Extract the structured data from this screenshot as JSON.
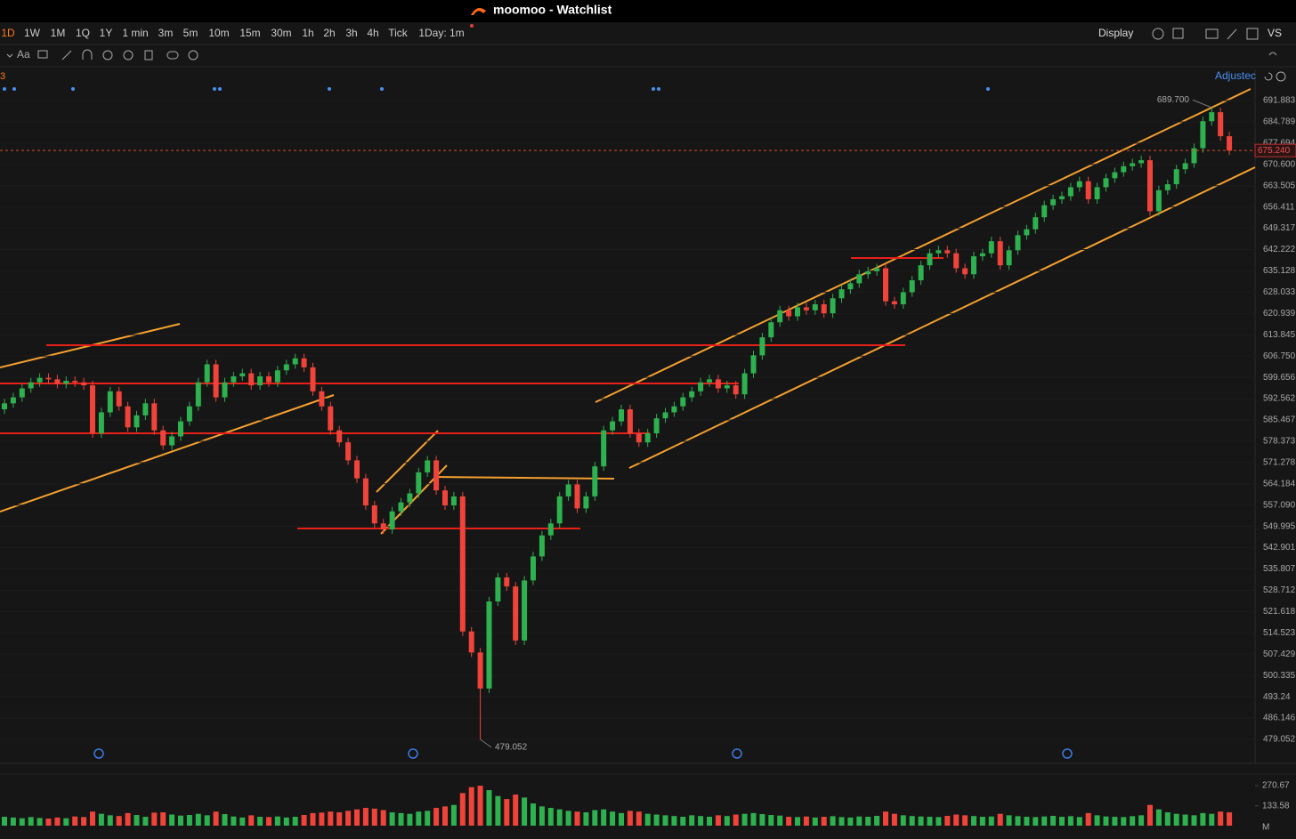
{
  "window": {
    "title": "moomoo - Watchlist"
  },
  "toolbar": {
    "intervals": [
      "1D",
      "1W",
      "1M",
      "1Q",
      "1Y",
      "1 min",
      "3m",
      "5m",
      "10m",
      "15m",
      "30m",
      "1h",
      "2h",
      "3h",
      "4h",
      "Tick",
      "1Day: 1m"
    ],
    "display": "Display",
    "compare": "VS",
    "text_tool": "Aa"
  },
  "chart_data": {
    "type": "candlestick",
    "indicator_label": "3",
    "adjust_label": "Adjustec",
    "colors": {
      "up": "#2eb14f",
      "down": "#f0443a"
    },
    "open": [
      589,
      591,
      593,
      596,
      598,
      599.5,
      599,
      597.5,
      598.5,
      598,
      597,
      581,
      588,
      595,
      590,
      583,
      587,
      591,
      582,
      577,
      580,
      585,
      590,
      598,
      604,
      593,
      598,
      600,
      601,
      597,
      600,
      598,
      602,
      604,
      606,
      603,
      595,
      590,
      582,
      578,
      572,
      566,
      557,
      551,
      549,
      555,
      558,
      561,
      568,
      572,
      562,
      557,
      560,
      515,
      508,
      496,
      525,
      533,
      530,
      512,
      532,
      540,
      547,
      551,
      560,
      564,
      556,
      560,
      570,
      582,
      585,
      589,
      581,
      578,
      581,
      586,
      588,
      590,
      593,
      595,
      598,
      599,
      596,
      597,
      594,
      601,
      607,
      613,
      618,
      622,
      620,
      623,
      622,
      624,
      621,
      626,
      629,
      631,
      634,
      635,
      636,
      625,
      624,
      628,
      632,
      637,
      641,
      642,
      641,
      636,
      634,
      640,
      641,
      645,
      637,
      642,
      647,
      649,
      653,
      657,
      659,
      660,
      663,
      665,
      659,
      663,
      666,
      668,
      670,
      671,
      672,
      655,
      662,
      664,
      669,
      671,
      676,
      685,
      688,
      680
    ],
    "high": [
      592.5,
      594.5,
      597.5,
      599.5,
      601,
      601,
      600.5,
      600,
      600,
      599.5,
      598.5,
      589.5,
      596.5,
      596.5,
      591.5,
      588.5,
      592.5,
      592.5,
      583.5,
      581.5,
      586.5,
      591.5,
      599.5,
      605.5,
      605.5,
      599.5,
      601.5,
      602.5,
      602.5,
      601.5,
      601.5,
      603.5,
      605.5,
      607.5,
      607.5,
      604.5,
      596.5,
      591.5,
      583.5,
      579.5,
      573.5,
      567.5,
      558.5,
      552.5,
      556.5,
      559.5,
      562.5,
      569.5,
      573.5,
      573.5,
      563.5,
      561.5,
      561.5,
      516.5,
      509.5,
      526.5,
      534.5,
      534.5,
      531.5,
      533.5,
      541.5,
      548.5,
      552.5,
      561.5,
      565.5,
      565.5,
      561.5,
      571.5,
      583.5,
      586.5,
      590.5,
      590.5,
      582.5,
      582.5,
      587.5,
      589.5,
      591.5,
      594.5,
      596.5,
      599.5,
      600.5,
      600.5,
      598.5,
      598.5,
      602.5,
      608.5,
      614.5,
      619.5,
      623.5,
      623.5,
      624.5,
      624.5,
      625.5,
      625.5,
      627.5,
      630.5,
      632.5,
      635.5,
      636.5,
      637.5,
      637.5,
      626.5,
      629.5,
      633.5,
      638.5,
      642.5,
      643.5,
      643.5,
      642.5,
      637.5,
      641.5,
      642.5,
      646.5,
      646.5,
      643.5,
      648.5,
      650.5,
      654.5,
      658.5,
      660.5,
      661.5,
      664.5,
      666.5,
      666.5,
      664.5,
      667.5,
      669.5,
      671.5,
      672.5,
      673.5,
      673.5,
      663.5,
      665.5,
      670.5,
      672.5,
      677.5,
      686.5,
      689.7,
      689.5,
      681.5
    ],
    "low": [
      587.5,
      589.5,
      591.5,
      594.5,
      596.5,
      597.5,
      596,
      596,
      596.5,
      595.5,
      579.5,
      579.5,
      586.5,
      588.5,
      581.5,
      581.5,
      585.5,
      580.5,
      575.5,
      575.5,
      578.5,
      583.5,
      588.5,
      596.5,
      591.5,
      591.5,
      596.5,
      598.5,
      595.5,
      595.5,
      596.5,
      596.5,
      600.5,
      602.5,
      601.5,
      593.5,
      588.5,
      580.5,
      576.5,
      570.5,
      564.5,
      555.5,
      549.5,
      547.5,
      547.5,
      553.5,
      556.5,
      559.5,
      566.5,
      560.5,
      555.5,
      555.5,
      513.5,
      506.5,
      479.052,
      494.5,
      523.5,
      528.5,
      510.5,
      510.5,
      530.5,
      538.5,
      545.5,
      549.5,
      558.5,
      554.5,
      554.5,
      558.5,
      568.5,
      580.5,
      583.5,
      579.5,
      576.5,
      576.5,
      579.5,
      584.5,
      586.5,
      588.5,
      591.5,
      593.5,
      596.5,
      594.5,
      594.5,
      592.5,
      592.5,
      599.5,
      605.5,
      611.5,
      616.5,
      618.5,
      618.5,
      620.5,
      620.5,
      619.5,
      619.5,
      624.5,
      627.5,
      629.5,
      632.5,
      633.5,
      623.5,
      622.5,
      622.5,
      626.5,
      630.5,
      635.5,
      639.5,
      639.5,
      634.5,
      632.5,
      632.5,
      638.5,
      639.5,
      635.5,
      635.5,
      640.5,
      645.5,
      647.5,
      651.5,
      655.5,
      657.5,
      658.5,
      661.5,
      657.5,
      657.5,
      661.5,
      664.5,
      666.5,
      668.5,
      669.5,
      653.5,
      653.5,
      660.5,
      662.5,
      667.5,
      669.5,
      674.5,
      683.5,
      678.5,
      673.74
    ],
    "close": [
      591,
      593,
      596,
      598,
      599.5,
      599,
      597.5,
      598.5,
      598,
      597,
      581,
      588,
      595,
      590,
      583,
      587,
      591,
      582,
      577,
      580,
      585,
      590,
      598,
      604,
      593,
      598,
      600,
      601,
      597,
      600,
      598,
      602,
      604,
      606,
      603,
      595,
      590,
      582,
      578,
      572,
      566,
      557,
      551,
      549,
      555,
      558,
      561,
      568,
      572,
      562,
      557,
      560,
      515,
      508,
      496,
      525,
      533,
      530,
      512,
      532,
      540,
      547,
      551,
      560,
      564,
      556,
      560,
      570,
      582,
      585,
      589,
      581,
      578,
      581,
      586,
      588,
      590,
      593,
      595,
      598,
      599,
      596,
      597,
      594,
      601,
      607,
      613,
      618,
      622,
      620,
      623,
      622,
      624,
      621,
      626,
      629,
      631,
      634,
      635,
      636,
      625,
      624,
      628,
      632,
      637,
      641,
      642,
      641,
      636,
      634,
      640,
      641,
      645,
      637,
      642,
      647,
      649,
      653,
      657,
      659,
      660,
      663,
      665,
      659,
      663,
      666,
      668,
      670,
      671,
      672,
      655,
      662,
      664,
      669,
      671,
      676,
      685,
      688,
      680,
      675.24
    ],
    "ylim": [
      471.05,
      702.26
    ],
    "yticks": [
      691.883,
      684.789,
      677.694,
      {
        "value": 670.6,
        "label": "670.600"
      },
      663.505,
      656.411,
      649.317,
      642.222,
      635.128,
      628.033,
      620.939,
      613.845,
      {
        "value": 606.75,
        "label": "606.750"
      },
      599.656,
      592.562,
      585.467,
      578.373,
      571.278,
      564.184,
      {
        "value": 557.09,
        "label": "557.090"
      },
      549.995,
      542.901,
      535.807,
      528.712,
      521.618,
      514.523,
      507.429,
      500.335,
      493.24,
      486.146,
      479.052
    ],
    "last_price": {
      "value": 675.24,
      "label": "675.240"
    },
    "high_annotation": {
      "value": 689.7,
      "label": "689.700"
    },
    "low_annotation": 479.052,
    "volume": {
      "unit": "M",
      "ylim": [
        0,
        300.5
      ],
      "yticks": [
        270.67,
        133.58
      ],
      "values": [
        60,
        55,
        50,
        58,
        52,
        48,
        55,
        50,
        62,
        58,
        95,
        80,
        70,
        65,
        85,
        72,
        60,
        88,
        90,
        75,
        68,
        72,
        80,
        70,
        95,
        78,
        62,
        55,
        70,
        60,
        58,
        62,
        55,
        60,
        72,
        85,
        88,
        95,
        90,
        100,
        110,
        120,
        115,
        105,
        90,
        85,
        80,
        95,
        100,
        120,
        130,
        140,
        220,
        260,
        270,
        240,
        200,
        180,
        210,
        190,
        150,
        130,
        120,
        110,
        100,
        95,
        90,
        105,
        110,
        95,
        85,
        100,
        95,
        80,
        75,
        70,
        65,
        60,
        70,
        65,
        60,
        70,
        65,
        75,
        80,
        85,
        78,
        72,
        68,
        60,
        58,
        62,
        55,
        60,
        64,
        58,
        55,
        62,
        60,
        66,
        95,
        80,
        70,
        65,
        62,
        60,
        58,
        66,
        75,
        70,
        65,
        60,
        62,
        80,
        70,
        64,
        60,
        58,
        62,
        66,
        60,
        64,
        58,
        85,
        70,
        62,
        60,
        58,
        64,
        70,
        140,
        110,
        90,
        80,
        75,
        70,
        85,
        80,
        95,
        90
      ]
    }
  }
}
